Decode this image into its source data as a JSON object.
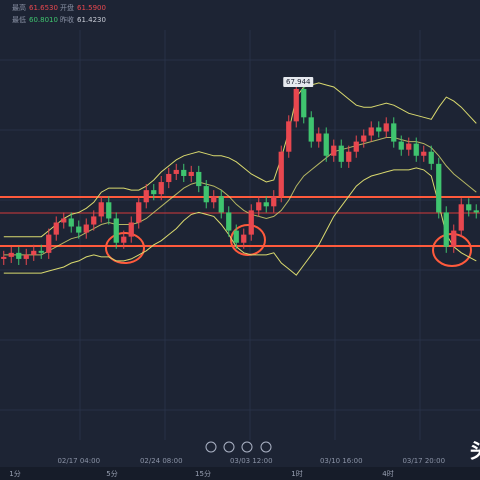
{
  "readout": {
    "items": [
      {
        "label": "最高",
        "value": "61.6530"
      },
      {
        "label": "开盘",
        "value": "61.5900"
      },
      {
        "label": "最低",
        "value": "60.8010"
      },
      {
        "label": "昨收",
        "value": "61.4230"
      }
    ]
  },
  "chart_data": {
    "type": "candlestick",
    "categories": [
      null,
      null,
      null,
      null,
      null,
      null,
      null,
      null,
      null,
      null,
      "02/17 04:00",
      null,
      null,
      null,
      null,
      null,
      null,
      null,
      null,
      null,
      null,
      "02/24 08:00",
      null,
      null,
      null,
      null,
      null,
      null,
      null,
      null,
      null,
      null,
      null,
      "03/03 12:00",
      null,
      null,
      null,
      null,
      null,
      null,
      null,
      null,
      null,
      null,
      null,
      "03/10 16:00",
      null,
      null,
      null,
      null,
      null,
      null,
      null,
      null,
      null,
      null,
      "03/17 20:00",
      null,
      null,
      null,
      null,
      null,
      null,
      null
    ],
    "open": [
      59.2,
      59.3,
      59.5,
      59.2,
      59.4,
      59.6,
      59.5,
      60.4,
      61.0,
      61.2,
      60.8,
      60.5,
      60.9,
      61.3,
      62.0,
      61.2,
      60.0,
      60.3,
      61.0,
      62.0,
      62.6,
      62.4,
      63.0,
      63.4,
      63.6,
      63.3,
      63.5,
      62.8,
      62.0,
      62.3,
      61.5,
      60.6,
      60.0,
      60.4,
      61.6,
      62.0,
      61.8,
      62.3,
      64.5,
      66.0,
      67.6,
      66.2,
      65.0,
      65.4,
      64.3,
      64.8,
      64.0,
      64.5,
      65.0,
      65.3,
      65.7,
      65.5,
      65.9,
      65.0,
      64.6,
      64.9,
      64.3,
      64.5,
      63.9,
      61.5,
      59.8,
      60.6,
      61.9,
      61.6
    ],
    "high": [
      59.6,
      59.8,
      59.8,
      59.7,
      59.9,
      59.9,
      60.7,
      61.3,
      61.5,
      61.5,
      61.1,
      61.2,
      61.6,
      62.3,
      62.3,
      61.5,
      60.6,
      61.3,
      62.3,
      62.9,
      62.9,
      63.3,
      63.7,
      63.9,
      63.9,
      63.8,
      63.8,
      63.1,
      62.6,
      62.6,
      61.8,
      60.9,
      60.7,
      61.9,
      62.3,
      62.3,
      62.6,
      64.8,
      66.3,
      67.944,
      67.9,
      66.5,
      65.7,
      65.7,
      65.1,
      65.1,
      64.8,
      65.3,
      65.6,
      66.0,
      66.0,
      66.2,
      66.2,
      65.3,
      65.2,
      65.2,
      64.8,
      64.8,
      64.2,
      61.8,
      60.9,
      62.2,
      62.2,
      61.9
    ],
    "low": [
      58.9,
      59.0,
      58.9,
      58.9,
      59.1,
      59.2,
      59.2,
      60.1,
      60.7,
      60.5,
      60.2,
      60.2,
      60.6,
      61.0,
      60.9,
      59.7,
      59.7,
      60.0,
      60.7,
      61.7,
      62.1,
      62.1,
      62.7,
      63.1,
      63.0,
      63.0,
      62.5,
      61.7,
      61.7,
      61.2,
      60.3,
      59.7,
      59.7,
      60.1,
      61.3,
      61.5,
      61.5,
      62.0,
      64.2,
      65.7,
      65.9,
      64.7,
      64.7,
      64.0,
      64.0,
      63.7,
      63.7,
      64.2,
      64.7,
      65.0,
      65.2,
      65.2,
      64.7,
      64.3,
      64.3,
      64.0,
      64.0,
      63.6,
      61.2,
      59.5,
      59.5,
      60.3,
      61.3,
      61.2
    ],
    "close": [
      59.3,
      59.5,
      59.2,
      59.4,
      59.6,
      59.5,
      60.4,
      61.0,
      61.2,
      60.8,
      60.5,
      60.9,
      61.3,
      62.0,
      61.2,
      60.0,
      60.3,
      61.0,
      62.0,
      62.6,
      62.4,
      63.0,
      63.4,
      63.6,
      63.3,
      63.5,
      62.8,
      62.0,
      62.3,
      61.5,
      60.6,
      60.0,
      60.4,
      61.6,
      62.0,
      61.8,
      62.3,
      64.5,
      66.0,
      67.6,
      66.2,
      65.0,
      65.4,
      64.3,
      64.8,
      64.0,
      64.5,
      65.0,
      65.3,
      65.7,
      65.5,
      65.9,
      65.0,
      64.6,
      64.9,
      64.3,
      64.5,
      63.9,
      61.5,
      59.8,
      60.6,
      61.9,
      61.6,
      61.5
    ],
    "up_color": "#e8474f",
    "down_color": "#3fc46f",
    "bands": {
      "color": "#d9d96e",
      "upper": [
        60.3,
        60.3,
        60.3,
        60.3,
        60.3,
        60.3,
        60.6,
        60.9,
        61.2,
        61.4,
        61.5,
        61.7,
        62.0,
        62.5,
        62.7,
        62.7,
        62.7,
        62.6,
        62.6,
        62.8,
        63.1,
        63.5,
        63.8,
        64.1,
        64.3,
        64.4,
        64.5,
        64.4,
        64.3,
        64.3,
        64.2,
        64.0,
        63.7,
        63.4,
        63.2,
        63.0,
        63.1,
        64.2,
        65.5,
        67.2,
        67.7,
        67.8,
        67.9,
        67.8,
        67.7,
        67.4,
        67.1,
        66.8,
        66.7,
        66.7,
        66.8,
        66.9,
        66.8,
        66.6,
        66.4,
        66.3,
        66.2,
        66.1,
        66.7,
        67.2,
        67.0,
        66.7,
        66.3,
        65.9
      ],
      "middle": [
        59.4,
        59.4,
        59.4,
        59.4,
        59.4,
        59.4,
        59.6,
        59.8,
        60.0,
        60.2,
        60.3,
        60.5,
        60.7,
        60.9,
        61.0,
        60.9,
        60.9,
        60.9,
        61.0,
        61.2,
        61.5,
        61.8,
        62.1,
        62.4,
        62.7,
        62.9,
        63.0,
        62.9,
        62.8,
        62.6,
        62.3,
        61.9,
        61.6,
        61.4,
        61.3,
        61.2,
        61.3,
        61.6,
        62.1,
        62.8,
        63.3,
        63.6,
        63.9,
        64.2,
        64.5,
        64.6,
        64.7,
        64.8,
        64.9,
        65.0,
        65.1,
        65.2,
        65.2,
        65.1,
        65.0,
        65.0,
        64.9,
        64.7,
        64.3,
        63.8,
        63.4,
        63.1,
        62.8,
        62.5
      ],
      "lower": [
        58.5,
        58.5,
        58.5,
        58.5,
        58.5,
        58.5,
        58.6,
        58.7,
        58.8,
        59.0,
        59.1,
        59.3,
        59.4,
        59.3,
        59.3,
        59.1,
        59.1,
        59.2,
        59.4,
        59.6,
        59.9,
        60.1,
        60.4,
        60.7,
        61.1,
        61.4,
        61.5,
        61.4,
        61.3,
        60.9,
        60.4,
        59.8,
        59.5,
        59.4,
        59.4,
        59.4,
        59.5,
        59.0,
        58.7,
        58.4,
        58.9,
        59.4,
        59.9,
        60.6,
        61.3,
        61.8,
        62.3,
        62.8,
        63.1,
        63.3,
        63.4,
        63.5,
        63.6,
        63.6,
        63.6,
        63.7,
        63.6,
        63.3,
        61.9,
        60.4,
        59.8,
        59.5,
        59.3,
        59.1
      ]
    },
    "levels": [
      62.26,
      59.84
    ],
    "level_color": "#ff5a3c",
    "price_line": 61.47,
    "price_line_color": "#d23a3a",
    "ylim": [
      50,
      72
    ]
  },
  "toolbar": [
    "1分",
    "5分",
    "15分",
    "1时",
    "4时"
  ],
  "watermark": "头"
}
